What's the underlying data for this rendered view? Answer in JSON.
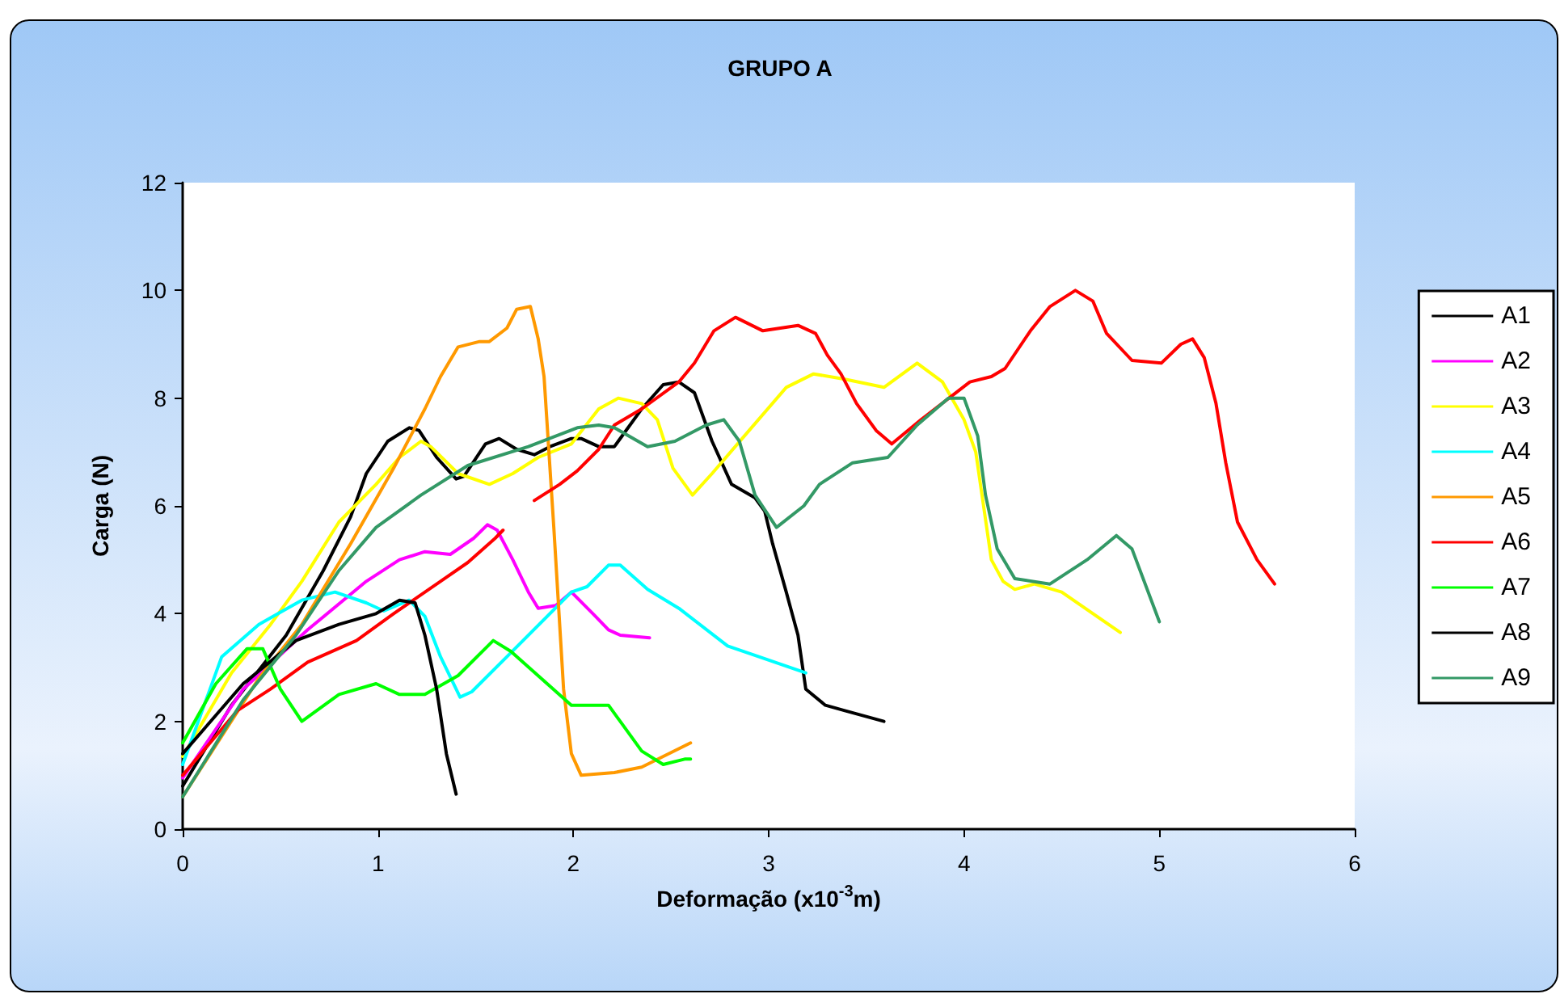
{
  "chart_data": {
    "type": "line",
    "title": "GRUPO A",
    "xlabel": "Deformação (x10$^{-3}$m)",
    "ylabel": "Carga (N)",
    "xlim": [
      0,
      6
    ],
    "xticks": [
      0,
      1,
      2,
      3,
      4,
      5,
      6
    ],
    "ylim": [
      0,
      12
    ],
    "yticks": [
      0,
      2,
      4,
      6,
      8,
      10,
      12
    ],
    "grid": false,
    "legend": "right",
    "marker": "none",
    "line_style": "solid",
    "series": [
      {
        "name": "A1",
        "color": "#000000",
        "x": [
          0,
          0.25,
          0.53,
          0.72,
          0.86,
          0.94,
          1.05,
          1.16,
          1.21,
          1.3,
          1.4,
          1.44,
          1.55,
          1.62,
          1.71,
          1.8,
          1.88,
          1.99,
          2.04,
          2.13,
          2.21,
          2.35,
          2.46,
          2.54,
          2.62,
          2.71,
          2.76,
          2.81,
          2.93,
          2.98,
          3.02,
          3.09,
          3.15,
          3.19,
          3.29,
          3.39,
          3.59
        ],
        "values": [
          0.8,
          2.3,
          3.6,
          4.8,
          5.8,
          6.6,
          7.2,
          7.45,
          7.4,
          6.9,
          6.5,
          6.55,
          7.15,
          7.25,
          7.05,
          6.95,
          7.1,
          7.25,
          7.25,
          7.1,
          7.1,
          7.8,
          8.25,
          8.3,
          8.1,
          7.2,
          6.8,
          6.4,
          6.15,
          5.9,
          5.3,
          4.4,
          3.6,
          2.6,
          2.3,
          2.2,
          2.0
        ]
      },
      {
        "name": "A2",
        "color": "#ff00ff",
        "x": [
          0,
          0.31,
          0.64,
          0.94,
          1.11,
          1.24,
          1.37,
          1.49,
          1.56,
          1.61,
          1.69,
          1.77,
          1.82,
          1.91,
          1.99,
          2.1,
          2.18,
          2.24,
          2.39
        ],
        "values": [
          0.95,
          2.6,
          3.7,
          4.6,
          5.0,
          5.15,
          5.1,
          5.4,
          5.65,
          5.55,
          5.0,
          4.4,
          4.1,
          4.15,
          4.4,
          4.0,
          3.7,
          3.6,
          3.55
        ]
      },
      {
        "name": "A3",
        "color": "#ffff00",
        "x": [
          0,
          0.25,
          0.45,
          0.61,
          0.8,
          0.99,
          1.11,
          1.22,
          1.27,
          1.41,
          1.57,
          1.69,
          1.82,
          1.99,
          2.13,
          2.23,
          2.35,
          2.43,
          2.51,
          2.61,
          2.71,
          2.9,
          3.09,
          3.23,
          3.39,
          3.59,
          3.76,
          3.89,
          4.0,
          4.06,
          4.14,
          4.2,
          4.26,
          4.36,
          4.5,
          4.8
        ],
        "values": [
          1.35,
          2.9,
          3.8,
          4.6,
          5.7,
          6.4,
          6.9,
          7.2,
          7.1,
          6.6,
          6.4,
          6.6,
          6.9,
          7.15,
          7.8,
          8.0,
          7.9,
          7.6,
          6.7,
          6.2,
          6.6,
          7.4,
          8.2,
          8.45,
          8.35,
          8.2,
          8.65,
          8.3,
          7.6,
          7.0,
          5.0,
          4.6,
          4.45,
          4.55,
          4.4,
          3.65
        ]
      },
      {
        "name": "A4",
        "color": "#00ffff",
        "x": [
          0,
          0.2,
          0.39,
          0.61,
          0.78,
          0.94,
          1.03,
          1.16,
          1.24,
          1.32,
          1.42,
          1.48,
          1.66,
          1.99,
          2.07,
          2.18,
          2.24,
          2.38,
          2.54,
          2.79,
          2.95,
          3.19
        ],
        "values": [
          1.2,
          3.2,
          3.8,
          4.25,
          4.4,
          4.2,
          4.05,
          4.25,
          3.95,
          3.2,
          2.45,
          2.55,
          3.2,
          4.4,
          4.5,
          4.9,
          4.9,
          4.45,
          4.1,
          3.4,
          3.2,
          2.9
        ]
      },
      {
        "name": "A5",
        "color": "#ff9900",
        "x": [
          0,
          0.39,
          0.61,
          0.86,
          1.08,
          1.24,
          1.32,
          1.41,
          1.52,
          1.57,
          1.66,
          1.71,
          1.78,
          1.82,
          1.85,
          1.9,
          1.95,
          1.99,
          2.04,
          2.21,
          2.35,
          2.6
        ],
        "values": [
          0.6,
          2.8,
          3.8,
          5.3,
          6.7,
          7.8,
          8.4,
          8.95,
          9.05,
          9.05,
          9.3,
          9.65,
          9.7,
          9.1,
          8.4,
          5.6,
          2.6,
          1.4,
          1.0,
          1.05,
          1.15,
          1.6
        ]
      },
      {
        "name": "A6",
        "color": "#ff0000",
        "x": [
          0,
          0.28,
          0.45,
          0.64,
          0.89,
          1.08,
          1.32,
          1.46,
          1.6,
          1.64,
          1.7,
          1.8,
          1.93,
          2.02,
          2.13,
          2.21,
          2.35,
          2.54,
          2.62,
          2.72,
          2.83,
          2.97,
          3.15,
          3.24,
          3.3,
          3.37,
          3.45,
          3.55,
          3.63,
          3.78,
          4.03,
          4.14,
          4.21,
          4.34,
          4.44,
          4.57,
          4.66,
          4.73,
          4.86,
          5.01,
          5.11,
          5.17,
          5.23,
          5.29,
          5.34,
          5.4,
          5.5,
          5.59
        ],
        "values": [
          1.0,
          2.2,
          2.6,
          3.1,
          3.5,
          4.0,
          4.6,
          4.95,
          5.4,
          5.55,
          null,
          6.1,
          6.4,
          6.65,
          7.05,
          7.5,
          7.8,
          8.3,
          8.65,
          9.25,
          9.5,
          9.25,
          9.35,
          9.2,
          8.8,
          8.45,
          7.9,
          7.4,
          7.15,
          7.6,
          8.3,
          8.4,
          8.55,
          9.25,
          9.7,
          10.0,
          9.8,
          9.2,
          8.7,
          8.65,
          9.0,
          9.1,
          8.75,
          7.9,
          6.8,
          5.7,
          5.0,
          4.55
        ]
      },
      {
        "name": "A7",
        "color": "#00ff00",
        "x": [
          0,
          0.17,
          0.33,
          0.41,
          0.5,
          0.61,
          0.8,
          0.99,
          1.11,
          1.24,
          1.41,
          1.59,
          1.68,
          1.99,
          2.13,
          2.18,
          2.24,
          2.35,
          2.46,
          2.57,
          2.6
        ],
        "values": [
          1.6,
          2.7,
          3.35,
          3.35,
          2.6,
          2.0,
          2.5,
          2.7,
          2.5,
          2.5,
          2.85,
          3.5,
          3.3,
          2.3,
          2.3,
          2.3,
          2.0,
          1.45,
          1.2,
          1.3,
          1.3
        ]
      },
      {
        "name": "A8",
        "color": "#000000",
        "x": [
          0,
          0.31,
          0.58,
          0.8,
          0.99,
          1.11,
          1.19,
          1.24,
          1.3,
          1.35,
          1.4
        ],
        "values": [
          1.4,
          2.7,
          3.5,
          3.8,
          4.0,
          4.25,
          4.2,
          3.6,
          2.6,
          1.4,
          0.65
        ]
      },
      {
        "name": "A9",
        "color": "#339966",
        "x": [
          0,
          0.31,
          0.58,
          0.8,
          0.99,
          1.22,
          1.46,
          1.77,
          2.02,
          2.13,
          2.21,
          2.38,
          2.52,
          2.68,
          2.77,
          2.85,
          2.93,
          3.04,
          3.18,
          3.26,
          3.43,
          3.61,
          3.76,
          3.92,
          4.0,
          4.07,
          4.11,
          4.17,
          4.26,
          4.44,
          4.63,
          4.78,
          4.86,
          5.0
        ],
        "values": [
          0.6,
          2.4,
          3.6,
          4.8,
          5.6,
          6.2,
          6.75,
          7.1,
          7.45,
          7.5,
          7.45,
          7.1,
          7.2,
          7.5,
          7.6,
          7.2,
          6.2,
          5.6,
          6.0,
          6.4,
          6.8,
          6.9,
          7.5,
          8.0,
          8.0,
          7.3,
          6.2,
          5.2,
          4.65,
          4.55,
          5.0,
          5.45,
          5.2,
          3.85
        ]
      }
    ]
  }
}
